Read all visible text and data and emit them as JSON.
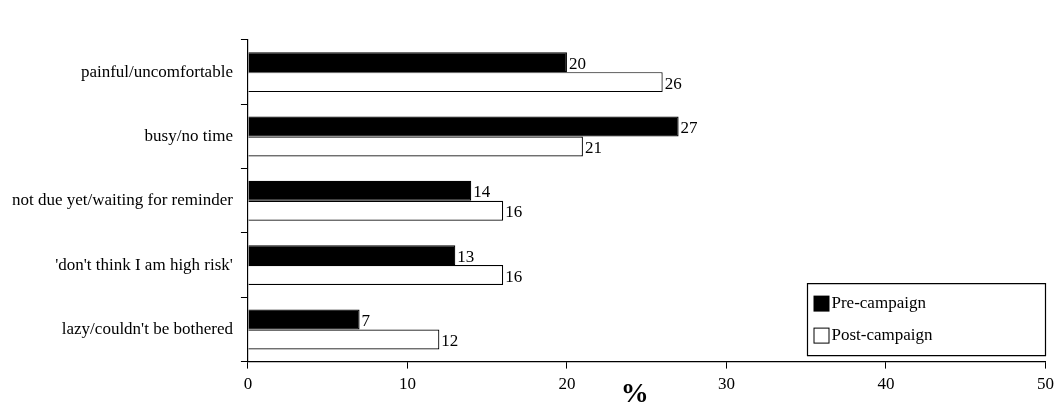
{
  "chart_data": {
    "type": "bar",
    "orientation": "horizontal",
    "xlabel": "%",
    "categories": [
      "painful/uncomfortable",
      "busy/no time",
      "not due yet/waiting for reminder",
      "'don't think I am high risk'",
      "lazy/couldn't be bothered"
    ],
    "series": [
      {
        "name": "Pre-campaign",
        "color": "#000000",
        "values": [
          20,
          27,
          14,
          13,
          7
        ]
      },
      {
        "name": "Post-campaign",
        "color": "#ffffff",
        "values": [
          26,
          21,
          16,
          16,
          12
        ]
      }
    ],
    "xlim": [
      0,
      50
    ],
    "xticks": [
      0,
      10,
      20,
      30,
      40,
      50
    ],
    "data_labels": true,
    "grid": false,
    "legend": "bottom right"
  }
}
